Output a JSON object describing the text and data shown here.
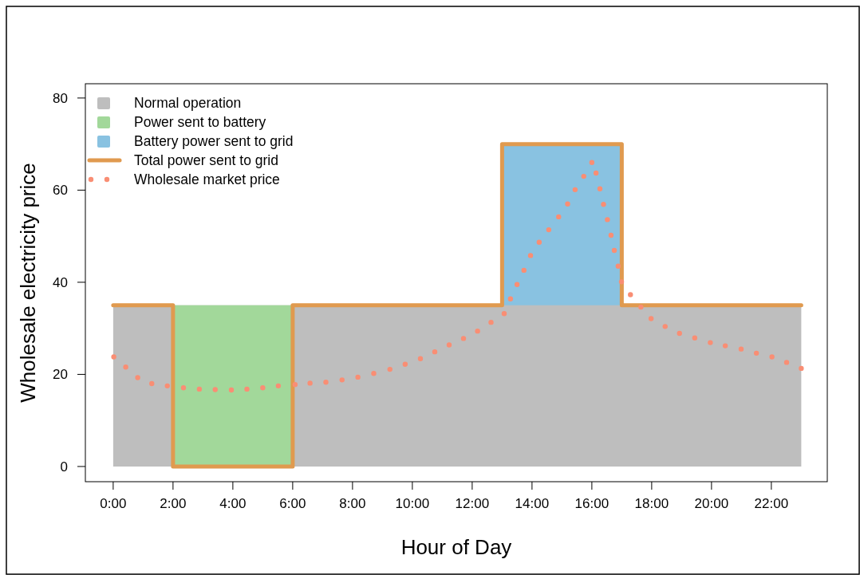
{
  "chart_data": {
    "type": "area",
    "xlabel": "Hour of Day",
    "ylabel": "Wholesale electricity price",
    "xlim": [
      -0.93,
      23.87
    ],
    "ylim": [
      -3.3,
      83.1
    ],
    "xticks": [
      {
        "value": 0,
        "label": "0:00"
      },
      {
        "value": 2,
        "label": "2:00"
      },
      {
        "value": 4,
        "label": "4:00"
      },
      {
        "value": 6,
        "label": "6:00"
      },
      {
        "value": 8,
        "label": "8:00"
      },
      {
        "value": 10,
        "label": "10:00"
      },
      {
        "value": 12,
        "label": "12:00"
      },
      {
        "value": 14,
        "label": "14:00"
      },
      {
        "value": 16,
        "label": "16:00"
      },
      {
        "value": 18,
        "label": "18:00"
      },
      {
        "value": 20,
        "label": "20:00"
      },
      {
        "value": 22,
        "label": "22:00"
      }
    ],
    "yticks": [
      0,
      20,
      40,
      60,
      80
    ],
    "grid": false,
    "legend": "top left",
    "series": [
      {
        "name": "Normal operation",
        "color": "#bebebe",
        "x": [
          0,
          23
        ],
        "values": [
          35,
          35
        ]
      },
      {
        "name": "Power sent to battery",
        "color": "#a2d89a",
        "x": [
          2,
          6
        ],
        "values": [
          35,
          35
        ]
      },
      {
        "name": "Battery power sent to grid",
        "color": "#89c2e1",
        "x": [
          13,
          17
        ],
        "values": [
          70,
          70
        ]
      },
      {
        "name": "Total power sent to grid",
        "type": "step",
        "color": "#e09a4f",
        "line_style": "solid",
        "x": [
          0,
          2,
          6,
          13,
          17,
          23
        ],
        "values": [
          35,
          0,
          35,
          70,
          35,
          35
        ]
      },
      {
        "name": "Wholesale market price",
        "type": "scatter",
        "marker": "circle",
        "color": "#f98e74",
        "x": [
          0.02,
          0.42,
          0.82,
          1.29,
          1.81,
          2.35,
          2.88,
          3.41,
          3.95,
          4.47,
          5.0,
          5.52,
          6.08,
          6.58,
          7.11,
          7.65,
          8.18,
          8.71,
          9.25,
          9.76,
          10.27,
          10.75,
          11.23,
          11.71,
          12.18,
          12.63,
          13.07,
          13.28,
          13.5,
          13.73,
          13.95,
          14.24,
          14.56,
          14.89,
          15.19,
          15.44,
          15.73,
          16.0,
          16.14,
          16.27,
          16.39,
          16.52,
          16.64,
          16.75,
          16.88,
          16.99,
          17.29,
          17.64,
          17.98,
          18.45,
          18.93,
          19.44,
          19.96,
          20.46,
          20.99,
          21.5,
          22.02,
          22.51,
          23.0
        ],
        "values": [
          23.8,
          21.6,
          19.3,
          18.0,
          17.5,
          17.1,
          16.8,
          16.7,
          16.6,
          16.8,
          17.1,
          17.5,
          17.8,
          18.1,
          18.3,
          18.8,
          19.4,
          20.2,
          21.1,
          22.2,
          23.4,
          24.9,
          26.4,
          27.8,
          29.4,
          31.3,
          33.2,
          36.4,
          39.5,
          42.6,
          45.8,
          48.7,
          51.4,
          54.2,
          57.0,
          60.1,
          63.0,
          66.0,
          63.7,
          60.3,
          56.9,
          53.6,
          50.2,
          46.9,
          43.5,
          40.1,
          37.3,
          34.6,
          32.1,
          30.4,
          28.9,
          27.9,
          26.9,
          26.2,
          25.5,
          24.6,
          23.8,
          22.6,
          21.3
        ]
      }
    ]
  }
}
